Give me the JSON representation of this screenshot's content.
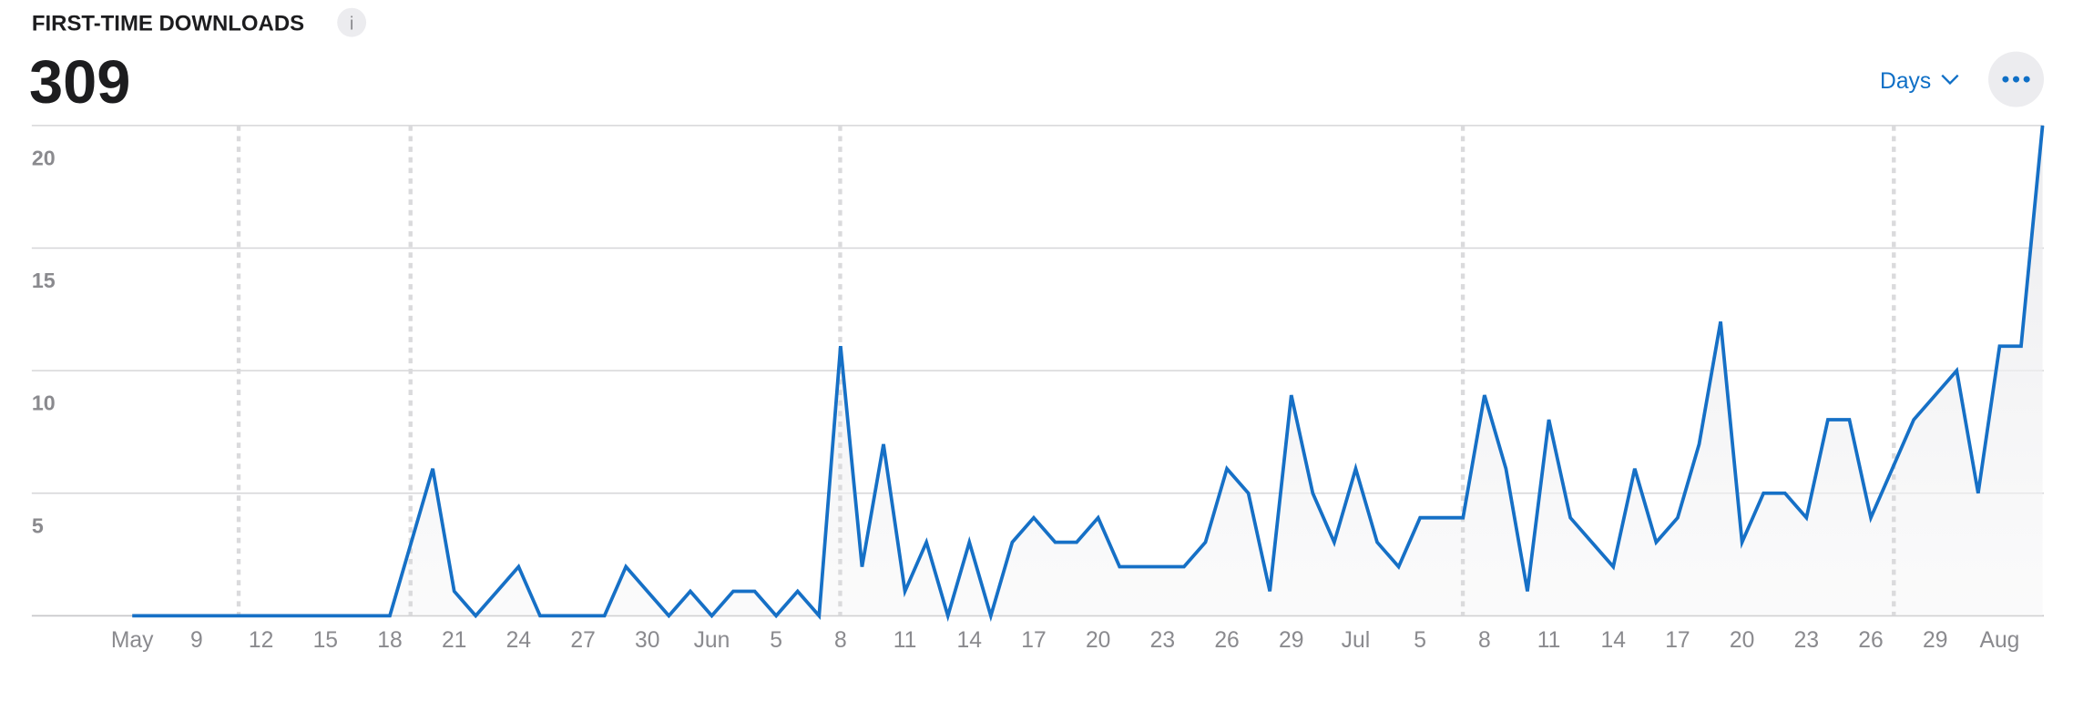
{
  "header": {
    "title": "FIRST-TIME DOWNLOADS",
    "info_icon": "i",
    "total": "309",
    "period_button": "Days"
  },
  "chart_data": {
    "type": "line",
    "categories": [
      "May",
      null,
      null,
      "9",
      null,
      null,
      "12",
      null,
      null,
      "15",
      null,
      null,
      "18",
      null,
      null,
      "21",
      null,
      null,
      "24",
      null,
      null,
      "27",
      null,
      null,
      "30",
      null,
      null,
      "Jun",
      null,
      null,
      "5",
      null,
      null,
      "8",
      null,
      null,
      "11",
      null,
      null,
      "14",
      null,
      null,
      "17",
      null,
      null,
      "20",
      null,
      null,
      "23",
      null,
      null,
      "26",
      null,
      null,
      "29",
      null,
      null,
      "Jul",
      null,
      null,
      "5",
      null,
      null,
      "8",
      null,
      null,
      "11",
      null,
      null,
      "14",
      null,
      null,
      "17",
      null,
      null,
      "20",
      null,
      null,
      "23",
      null,
      null,
      "26",
      null,
      null,
      "29",
      null,
      null,
      "Aug",
      null,
      null
    ],
    "series": [
      {
        "name": "First-Time Downloads",
        "color": "#1670c6",
        "values": [
          0,
          0,
          0,
          0,
          0,
          0,
          0,
          0,
          0,
          0,
          0,
          0,
          0,
          3,
          6,
          1,
          0,
          1,
          2,
          0,
          0,
          0,
          0,
          2,
          1,
          0,
          1,
          0,
          1,
          1,
          0,
          1,
          0,
          11,
          2,
          7,
          1,
          3,
          0,
          3,
          0,
          3,
          4,
          3,
          3,
          4,
          2,
          2,
          2,
          2,
          3,
          6,
          5,
          1,
          9,
          5,
          3,
          6,
          3,
          2,
          4,
          4,
          4,
          9,
          6,
          1,
          8,
          4,
          3,
          2,
          6,
          3,
          4,
          7,
          12,
          3,
          5,
          5,
          4,
          8,
          8,
          4,
          6,
          8,
          9,
          10,
          5,
          11,
          11,
          20
        ]
      }
    ],
    "ylim": [
      0,
      20
    ],
    "yticks": [
      5,
      10,
      15,
      20
    ],
    "grid": true
  }
}
